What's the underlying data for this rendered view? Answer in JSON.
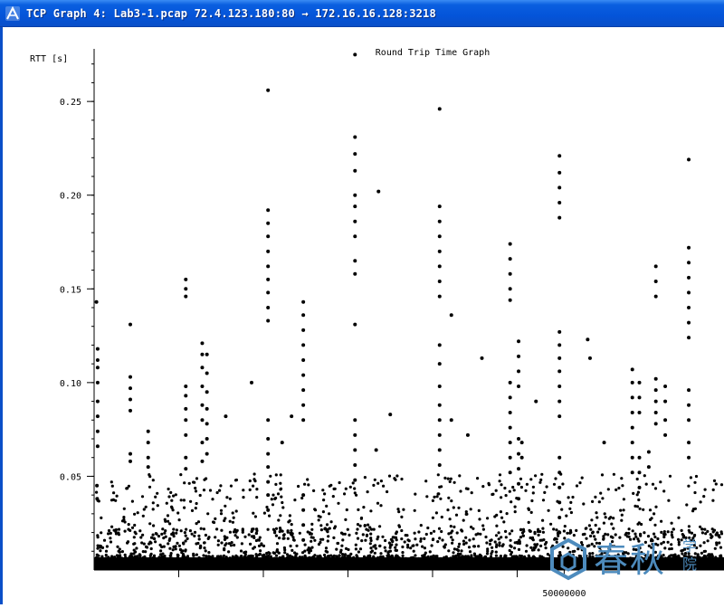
{
  "window": {
    "title": "TCP Graph 4: Lab3-1.pcap 72.4.123.180:80 → 172.16.16.128:3218",
    "icon": "tcp-graph-app-icon"
  },
  "chart_data": {
    "type": "scatter",
    "title": "Round Trip Time Graph",
    "ylabel": "RTT [s]",
    "xlabel": "",
    "ylim": [
      0,
      0.28
    ],
    "xlim": [
      40000000,
      53400000
    ],
    "y_ticks": [
      {
        "value": 0.05,
        "label": "0.05"
      },
      {
        "value": 0.1,
        "label": "0.10"
      },
      {
        "value": 0.15,
        "label": "0.15"
      },
      {
        "value": 0.2,
        "label": "0.20"
      },
      {
        "value": 0.25,
        "label": "0.25"
      }
    ],
    "x_ticks": [
      {
        "value": 41800000,
        "label": ""
      },
      {
        "value": 43600000,
        "label": ""
      },
      {
        "value": 45400000,
        "label": ""
      },
      {
        "value": 47200000,
        "label": ""
      },
      {
        "value": 49000000,
        "label": ""
      },
      {
        "value": 50000000,
        "label": "50000000"
      }
    ],
    "series": [
      {
        "color": "#000000",
        "points": [
          [
            40050000,
            0.143
          ],
          [
            40075000,
            0.118
          ],
          [
            40075000,
            0.112
          ],
          [
            40075000,
            0.108
          ],
          [
            40075000,
            0.1
          ],
          [
            40075000,
            0.09
          ],
          [
            40075000,
            0.082
          ],
          [
            40075000,
            0.074
          ],
          [
            40075000,
            0.066
          ],
          [
            40060000,
            0.045
          ],
          [
            40065000,
            0.038
          ],
          [
            40770000,
            0.131
          ],
          [
            40770000,
            0.103
          ],
          [
            40770000,
            0.097
          ],
          [
            40770000,
            0.091
          ],
          [
            40770000,
            0.085
          ],
          [
            40770000,
            0.062
          ],
          [
            40770000,
            0.058
          ],
          [
            41150000,
            0.074
          ],
          [
            41150000,
            0.068
          ],
          [
            41150000,
            0.06
          ],
          [
            41150000,
            0.055
          ],
          [
            41950000,
            0.155
          ],
          [
            41950000,
            0.15
          ],
          [
            41950000,
            0.146
          ],
          [
            41950000,
            0.098
          ],
          [
            41950000,
            0.093
          ],
          [
            41950000,
            0.086
          ],
          [
            41950000,
            0.08
          ],
          [
            41950000,
            0.072
          ],
          [
            41950000,
            0.06
          ],
          [
            41950000,
            0.054
          ],
          [
            42300000,
            0.121
          ],
          [
            42300000,
            0.115
          ],
          [
            42300000,
            0.108
          ],
          [
            42300000,
            0.098
          ],
          [
            42300000,
            0.088
          ],
          [
            42300000,
            0.08
          ],
          [
            42300000,
            0.068
          ],
          [
            42300000,
            0.058
          ],
          [
            42400000,
            0.115
          ],
          [
            42400000,
            0.105
          ],
          [
            42400000,
            0.095
          ],
          [
            42400000,
            0.086
          ],
          [
            42400000,
            0.078
          ],
          [
            42400000,
            0.07
          ],
          [
            42400000,
            0.062
          ],
          [
            42800000,
            0.082
          ],
          [
            43350000,
            0.1
          ],
          [
            43700000,
            0.256
          ],
          [
            43700000,
            0.192
          ],
          [
            43700000,
            0.185
          ],
          [
            43700000,
            0.178
          ],
          [
            43700000,
            0.17
          ],
          [
            43700000,
            0.162
          ],
          [
            43700000,
            0.155
          ],
          [
            43700000,
            0.148
          ],
          [
            43700000,
            0.14
          ],
          [
            43700000,
            0.133
          ],
          [
            43700000,
            0.08
          ],
          [
            43700000,
            0.07
          ],
          [
            43700000,
            0.062
          ],
          [
            43700000,
            0.055
          ],
          [
            43700000,
            0.047
          ],
          [
            43700000,
            0.04
          ],
          [
            43700000,
            0.032
          ],
          [
            44000000,
            0.068
          ],
          [
            44200000,
            0.082
          ],
          [
            44450000,
            0.143
          ],
          [
            44450000,
            0.136
          ],
          [
            44450000,
            0.128
          ],
          [
            44450000,
            0.12
          ],
          [
            44450000,
            0.112
          ],
          [
            44450000,
            0.104
          ],
          [
            44450000,
            0.096
          ],
          [
            44450000,
            0.088
          ],
          [
            44450000,
            0.08
          ],
          [
            44450000,
            0.04
          ],
          [
            44450000,
            0.032
          ],
          [
            44450000,
            0.024
          ],
          [
            44450000,
            0.016
          ],
          [
            45550000,
            0.275
          ],
          [
            45550000,
            0.231
          ],
          [
            45550000,
            0.222
          ],
          [
            45550000,
            0.213
          ],
          [
            45550000,
            0.2
          ],
          [
            45550000,
            0.194
          ],
          [
            45550000,
            0.186
          ],
          [
            45550000,
            0.178
          ],
          [
            45550000,
            0.165
          ],
          [
            45550000,
            0.158
          ],
          [
            45550000,
            0.131
          ],
          [
            45550000,
            0.08
          ],
          [
            45550000,
            0.072
          ],
          [
            45550000,
            0.064
          ],
          [
            45550000,
            0.056
          ],
          [
            45550000,
            0.048
          ],
          [
            46050000,
            0.202
          ],
          [
            46000000,
            0.064
          ],
          [
            46300000,
            0.083
          ],
          [
            47350000,
            0.246
          ],
          [
            47350000,
            0.194
          ],
          [
            47350000,
            0.186
          ],
          [
            47350000,
            0.178
          ],
          [
            47350000,
            0.17
          ],
          [
            47350000,
            0.162
          ],
          [
            47350000,
            0.154
          ],
          [
            47350000,
            0.146
          ],
          [
            47350000,
            0.12
          ],
          [
            47350000,
            0.11
          ],
          [
            47350000,
            0.098
          ],
          [
            47350000,
            0.088
          ],
          [
            47350000,
            0.08
          ],
          [
            47350000,
            0.072
          ],
          [
            47350000,
            0.064
          ],
          [
            47350000,
            0.056
          ],
          [
            47600000,
            0.136
          ],
          [
            47600000,
            0.08
          ],
          [
            47950000,
            0.072
          ],
          [
            48250000,
            0.113
          ],
          [
            48850000,
            0.174
          ],
          [
            48850000,
            0.166
          ],
          [
            48850000,
            0.158
          ],
          [
            48850000,
            0.15
          ],
          [
            48850000,
            0.144
          ],
          [
            48850000,
            0.1
          ],
          [
            48850000,
            0.092
          ],
          [
            48850000,
            0.084
          ],
          [
            48850000,
            0.076
          ],
          [
            48850000,
            0.068
          ],
          [
            48850000,
            0.06
          ],
          [
            48850000,
            0.052
          ],
          [
            49030000,
            0.122
          ],
          [
            49030000,
            0.114
          ],
          [
            49030000,
            0.106
          ],
          [
            49030000,
            0.098
          ],
          [
            49030000,
            0.07
          ],
          [
            49030000,
            0.062
          ],
          [
            49030000,
            0.054
          ],
          [
            49030000,
            0.046
          ],
          [
            49030000,
            0.038
          ],
          [
            49100000,
            0.068
          ],
          [
            49100000,
            0.06
          ],
          [
            49400000,
            0.09
          ],
          [
            49900000,
            0.221
          ],
          [
            49900000,
            0.212
          ],
          [
            49900000,
            0.204
          ],
          [
            49900000,
            0.196
          ],
          [
            49900000,
            0.188
          ],
          [
            49900000,
            0.127
          ],
          [
            49900000,
            0.12
          ],
          [
            49900000,
            0.113
          ],
          [
            49900000,
            0.106
          ],
          [
            49900000,
            0.098
          ],
          [
            49900000,
            0.09
          ],
          [
            49900000,
            0.082
          ],
          [
            49900000,
            0.06
          ],
          [
            49900000,
            0.052
          ],
          [
            49900000,
            0.044
          ],
          [
            49900000,
            0.036
          ],
          [
            49900000,
            0.028
          ],
          [
            49900000,
            0.02
          ],
          [
            50500000,
            0.123
          ],
          [
            50550000,
            0.113
          ],
          [
            50850000,
            0.068
          ],
          [
            51450000,
            0.107
          ],
          [
            51450000,
            0.1
          ],
          [
            51450000,
            0.092
          ],
          [
            51450000,
            0.084
          ],
          [
            51450000,
            0.076
          ],
          [
            51450000,
            0.068
          ],
          [
            51450000,
            0.06
          ],
          [
            51450000,
            0.052
          ],
          [
            51600000,
            0.1
          ],
          [
            51600000,
            0.092
          ],
          [
            51600000,
            0.084
          ],
          [
            51600000,
            0.06
          ],
          [
            51600000,
            0.052
          ],
          [
            51600000,
            0.044
          ],
          [
            51800000,
            0.063
          ],
          [
            51800000,
            0.055
          ],
          [
            51950000,
            0.162
          ],
          [
            51950000,
            0.154
          ],
          [
            51950000,
            0.146
          ],
          [
            51950000,
            0.102
          ],
          [
            51950000,
            0.096
          ],
          [
            51950000,
            0.09
          ],
          [
            51950000,
            0.084
          ],
          [
            51950000,
            0.078
          ],
          [
            52150000,
            0.098
          ],
          [
            52150000,
            0.09
          ],
          [
            52150000,
            0.08
          ],
          [
            52150000,
            0.072
          ],
          [
            52650000,
            0.219
          ],
          [
            52650000,
            0.172
          ],
          [
            52650000,
            0.164
          ],
          [
            52650000,
            0.156
          ],
          [
            52650000,
            0.148
          ],
          [
            52650000,
            0.14
          ],
          [
            52650000,
            0.132
          ],
          [
            52650000,
            0.124
          ],
          [
            52650000,
            0.096
          ],
          [
            52650000,
            0.088
          ],
          [
            52650000,
            0.08
          ],
          [
            52650000,
            0.068
          ],
          [
            52650000,
            0.06
          ]
        ]
      }
    ]
  },
  "watermark": {
    "text": "春秋",
    "side_text": "学院"
  }
}
